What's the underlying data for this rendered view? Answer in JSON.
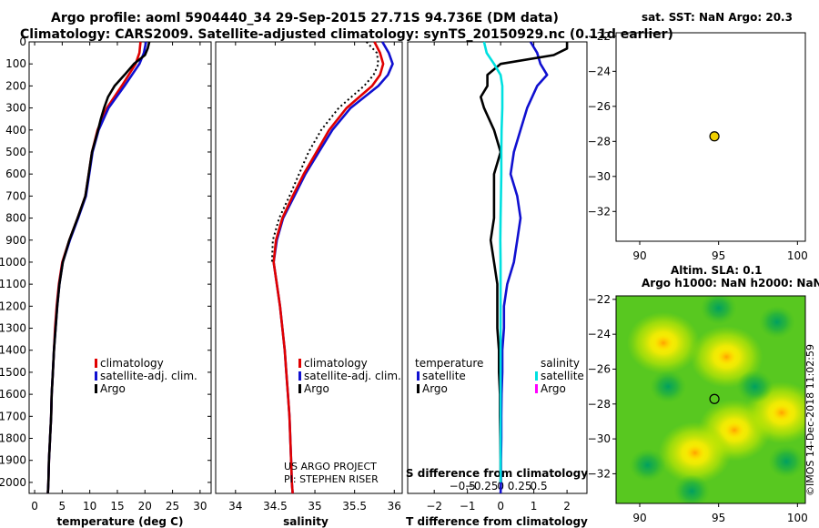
{
  "titles": {
    "line1": "Argo profile: aoml 5904440_34 29-Sep-2015 27.71S 94.736E (DM data)",
    "line2": "Climatology: CARS2009. Satellite-adjusted climatology: synTS_20150929.nc (0.11d earlier)",
    "sst": "sat. SST: NaN Argo: 20.3",
    "sla": "Altim. SLA: 0.1",
    "heights": "Argo h1000: NaN h2000: NaN",
    "credit": "©IMOS 14-Dec-2018 11:02:59"
  },
  "colors": {
    "climatology": "#e00000",
    "satellite": "#1010d0",
    "argo": "#000000",
    "sat_salinity": "#00e0e0",
    "argo_salinity": "#ff00ff"
  },
  "chart_data": [
    {
      "type": "line",
      "name": "temperature",
      "xlabel": "temperature (deg C)",
      "ylabel": "depth",
      "xlim": [
        -1,
        32
      ],
      "ylim": [
        2050,
        0
      ],
      "xticks": [
        0,
        5,
        10,
        15,
        20,
        25,
        30
      ],
      "yticks": [
        0,
        100,
        200,
        300,
        400,
        500,
        600,
        700,
        800,
        900,
        1000,
        1100,
        1200,
        1300,
        1400,
        1500,
        1600,
        1700,
        1800,
        1900,
        2000
      ],
      "legend": [
        "climatology",
        "satellite-adj. clim.",
        "Argo"
      ],
      "series": [
        {
          "name": "climatology",
          "color": "#e00000",
          "depth": [
            0,
            50,
            100,
            200,
            300,
            400,
            500,
            600,
            700,
            800,
            900,
            1000,
            1100,
            1200,
            1300,
            1400,
            1500,
            1600,
            1700,
            1800,
            1900,
            2000,
            2050
          ],
          "values": [
            19.2,
            19.0,
            18.3,
            15.8,
            13.1,
            11.4,
            10.4,
            9.8,
            9.2,
            7.8,
            6.3,
            5.0,
            4.4,
            4.0,
            3.7,
            3.5,
            3.3,
            3.1,
            3.0,
            2.8,
            2.6,
            2.5,
            2.4
          ]
        },
        {
          "name": "satellite-adj. clim.",
          "color": "#1010d0",
          "depth": [
            0,
            50,
            100,
            200,
            300,
            400,
            500,
            600,
            700,
            800,
            900,
            1000,
            1100,
            1200,
            1300,
            1400,
            1500,
            1600,
            1700,
            1800,
            1900,
            2000,
            2050
          ],
          "values": [
            20.2,
            19.8,
            19.0,
            16.3,
            13.4,
            11.6,
            10.5,
            9.9,
            9.3,
            7.9,
            6.4,
            5.1,
            4.5,
            4.1,
            3.8,
            3.5,
            3.3,
            3.1,
            3.0,
            2.8,
            2.6,
            2.5,
            2.4
          ]
        },
        {
          "name": "Argo",
          "color": "#000000",
          "depth": [
            0,
            30,
            60,
            100,
            150,
            200,
            250,
            300,
            350,
            400,
            500,
            600,
            700,
            800,
            900,
            1000,
            1100,
            1200,
            1300,
            1400,
            1500,
            1600,
            1700,
            1800,
            1900,
            2000,
            2050
          ],
          "values": [
            20.8,
            20.5,
            20.0,
            18.0,
            16.3,
            14.5,
            13.3,
            12.6,
            12.0,
            11.5,
            10.4,
            9.8,
            9.2,
            7.8,
            6.3,
            5.1,
            4.5,
            4.1,
            3.8,
            3.5,
            3.3,
            3.1,
            3.0,
            2.8,
            2.6,
            2.5,
            2.4
          ]
        }
      ]
    },
    {
      "type": "line",
      "name": "salinity",
      "xlabel": "salinity",
      "ylabel": "depth",
      "xlim": [
        33.75,
        36.1
      ],
      "ylim": [
        2050,
        0
      ],
      "xticks": [
        34,
        34.5,
        35,
        35.5,
        36
      ],
      "legend": [
        "climatology",
        "satellite-adj. clim.",
        "Argo"
      ],
      "annotations": [
        "US ARGO PROJECT",
        "PI: STEPHEN RISER"
      ],
      "series": [
        {
          "name": "satellite-adj. clim.",
          "color": "#1010d0",
          "depth": [
            0,
            50,
            100,
            150,
            200,
            300,
            400,
            500,
            600,
            700,
            800,
            900,
            1000,
            1100,
            1200,
            1300,
            1400,
            1500,
            1600,
            1700,
            1800,
            1900,
            2000,
            2050
          ],
          "values": [
            35.85,
            35.93,
            35.98,
            35.92,
            35.8,
            35.45,
            35.22,
            35.05,
            34.88,
            34.74,
            34.6,
            34.52,
            34.48,
            34.52,
            34.56,
            34.59,
            34.62,
            34.64,
            34.66,
            34.68,
            34.69,
            34.7,
            34.71,
            34.72
          ]
        },
        {
          "name": "climatology",
          "color": "#e00000",
          "depth": [
            0,
            50,
            100,
            150,
            200,
            300,
            400,
            500,
            600,
            700,
            800,
            900,
            1000,
            1100,
            1200,
            1300,
            1400,
            1500,
            1600,
            1700,
            1800,
            1900,
            2000,
            2050
          ],
          "values": [
            35.75,
            35.82,
            35.86,
            35.82,
            35.72,
            35.4,
            35.18,
            35.02,
            34.86,
            34.72,
            34.59,
            34.51,
            34.48,
            34.52,
            34.56,
            34.59,
            34.62,
            34.64,
            34.66,
            34.68,
            34.69,
            34.7,
            34.71,
            34.72
          ]
        },
        {
          "name": "Argo",
          "color": "#000000",
          "style": "dotted",
          "depth": [
            0,
            50,
            100,
            150,
            200,
            300,
            400,
            500,
            600,
            700,
            800,
            900,
            1000
          ],
          "values": [
            35.65,
            35.78,
            35.8,
            35.74,
            35.62,
            35.3,
            35.08,
            34.92,
            34.8,
            34.68,
            34.55,
            34.47,
            34.46
          ]
        }
      ]
    },
    {
      "type": "line",
      "name": "difference",
      "xlabel": "T difference from climatology",
      "x2label": "S difference from climatology",
      "ylabel": "depth",
      "xlim": [
        -2.8,
        2.6
      ],
      "ylim": [
        2050,
        0
      ],
      "xticks": [
        -2,
        -1,
        0,
        1,
        2
      ],
      "x2ticks": [
        -0.5,
        -0.25,
        0,
        0.25,
        0.5
      ],
      "legend_left_title": "temperature",
      "legend_right_title": "salinity",
      "legend_left": [
        "satellite",
        "Argo"
      ],
      "legend_right": [
        "satellite",
        "Argo"
      ],
      "series": [
        {
          "name": "T satellite",
          "color": "#1010d0",
          "depth": [
            0,
            50,
            100,
            150,
            200,
            300,
            400,
            500,
            600,
            700,
            800,
            900,
            1000,
            1100,
            1200,
            1300,
            1400,
            1500,
            1600,
            1700,
            1800,
            1900,
            2000,
            2050
          ],
          "values": [
            0.9,
            1.1,
            1.2,
            1.4,
            1.1,
            0.8,
            0.6,
            0.4,
            0.3,
            0.5,
            0.6,
            0.5,
            0.4,
            0.2,
            0.1,
            0.1,
            0.05,
            0.05,
            0.03,
            0.02,
            0.02,
            0.01,
            0.01,
            0.0
          ]
        },
        {
          "name": "T Argo",
          "color": "#000000",
          "depth": [
            0,
            30,
            60,
            100,
            150,
            200,
            250,
            300,
            400,
            500,
            600,
            700,
            800,
            900,
            1000,
            1100,
            1200,
            1300,
            1400,
            1500,
            1600,
            1700,
            1800,
            1900,
            2000
          ],
          "values": [
            2.0,
            2.0,
            1.6,
            0.0,
            -0.4,
            -0.4,
            -0.6,
            -0.5,
            -0.2,
            0.0,
            -0.2,
            -0.2,
            -0.2,
            -0.3,
            -0.2,
            -0.1,
            -0.1,
            -0.1,
            -0.05,
            -0.05,
            -0.02,
            -0.02,
            -0.01,
            0.0,
            0.0
          ]
        },
        {
          "name": "S satellite",
          "color": "#00e0e0",
          "depth": [
            0,
            50,
            100,
            150,
            200,
            300,
            400,
            500,
            600,
            700,
            800,
            900,
            1000,
            1100,
            1200,
            1300,
            1400,
            1500,
            1600,
            1700,
            1800,
            1900,
            2000
          ],
          "values": [
            -0.5,
            -0.42,
            -0.2,
            0.0,
            0.05,
            0.05,
            0.03,
            0.02,
            0.02,
            0.01,
            0.0,
            -0.01,
            0.0,
            0.0,
            0.0,
            0.0,
            0.0,
            0.0,
            0.0,
            0.0,
            0.0,
            0.0,
            0.0
          ]
        }
      ]
    },
    {
      "type": "scatter",
      "name": "sst_map",
      "xlim": [
        88.5,
        100.5
      ],
      "ylim": [
        -33.7,
        -21.8
      ],
      "xticks": [
        90,
        95,
        100
      ],
      "yticks": [
        -22,
        -24,
        -26,
        -28,
        -30,
        -32
      ],
      "points": [
        {
          "lon": 94.736,
          "lat": -27.71
        }
      ]
    },
    {
      "type": "heatmap",
      "name": "sla_map",
      "xlim": [
        88.5,
        100.5
      ],
      "ylim": [
        -33.7,
        -21.8
      ],
      "xticks": [
        90,
        95,
        100
      ],
      "yticks": [
        -22,
        -24,
        -26,
        -28,
        -30,
        -32
      ],
      "points": [
        {
          "lon": 94.736,
          "lat": -27.71
        }
      ],
      "blobs": [
        {
          "lon": 95.5,
          "lat": -25.3,
          "kind": "high"
        },
        {
          "lon": 96.0,
          "lat": -29.5,
          "kind": "high"
        },
        {
          "lon": 91.5,
          "lat": -24.5,
          "kind": "high"
        },
        {
          "lon": 99.0,
          "lat": -28.5,
          "kind": "high"
        },
        {
          "lon": 93.5,
          "lat": -30.8,
          "kind": "high"
        },
        {
          "lon": 98.7,
          "lat": -23.3,
          "kind": "low"
        },
        {
          "lon": 91.8,
          "lat": -27.0,
          "kind": "low"
        },
        {
          "lon": 99.3,
          "lat": -31.3,
          "kind": "low"
        },
        {
          "lon": 93.3,
          "lat": -33.0,
          "kind": "low"
        },
        {
          "lon": 97.3,
          "lat": -27.0,
          "kind": "low"
        },
        {
          "lon": 90.5,
          "lat": -31.5,
          "kind": "low"
        },
        {
          "lon": 95.0,
          "lat": -22.5,
          "kind": "low"
        }
      ]
    }
  ]
}
